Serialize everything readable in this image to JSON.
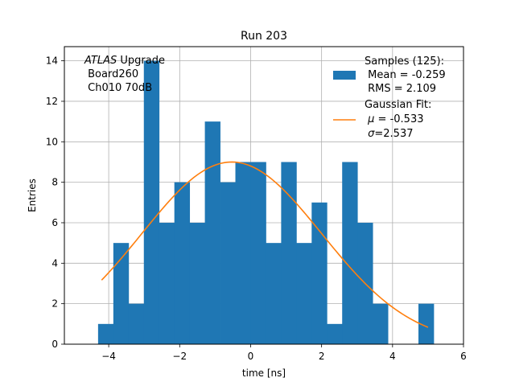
{
  "chart_data": {
    "type": "bar",
    "title": "Run 203",
    "xlabel": "time [ns]",
    "ylabel": "Entries",
    "xlim": [
      -5.25,
      6
    ],
    "ylim": [
      0,
      14.7
    ],
    "grid": true,
    "xticks": [
      -4,
      -2,
      0,
      2,
      4,
      6
    ],
    "xtick_labels": [
      "−4",
      "−2",
      "0",
      "2",
      "4",
      "6"
    ],
    "yticks": [
      0,
      2,
      4,
      6,
      8,
      10,
      12,
      14
    ],
    "ytick_labels": [
      "0",
      "2",
      "4",
      "6",
      "8",
      "10",
      "12",
      "14"
    ],
    "histogram": {
      "name": "Samples",
      "color": "#1f77b4",
      "bin_start": -4.3,
      "bin_width": 0.43,
      "counts": [
        1,
        5,
        2,
        14,
        6,
        8,
        6,
        11,
        8,
        9,
        9,
        5,
        9,
        5,
        7,
        1,
        9,
        6,
        2,
        0,
        0,
        2
      ]
    },
    "fit": {
      "name": "Gaussian Fit",
      "color": "#ff7f0e",
      "mu": -0.533,
      "sigma": 2.537,
      "amplitude": 9.0,
      "x_range": [
        -4.2,
        5.0
      ]
    },
    "annotation": {
      "italic": "ATLAS",
      "rest": " Upgrade",
      "line2": " Board260",
      "line3": " Ch010 70dB"
    },
    "legend": {
      "position": "upper right",
      "hist_lines": [
        "Samples (125):",
        " Mean = -0.259",
        " RMS = 2.109"
      ],
      "fit_line1": "Gaussian Fit:",
      "fit_mu_symbol": "μ",
      "fit_mu_value": " = -0.533",
      "fit_sigma_symbol": "σ",
      "fit_sigma_value": "=2.537"
    }
  }
}
